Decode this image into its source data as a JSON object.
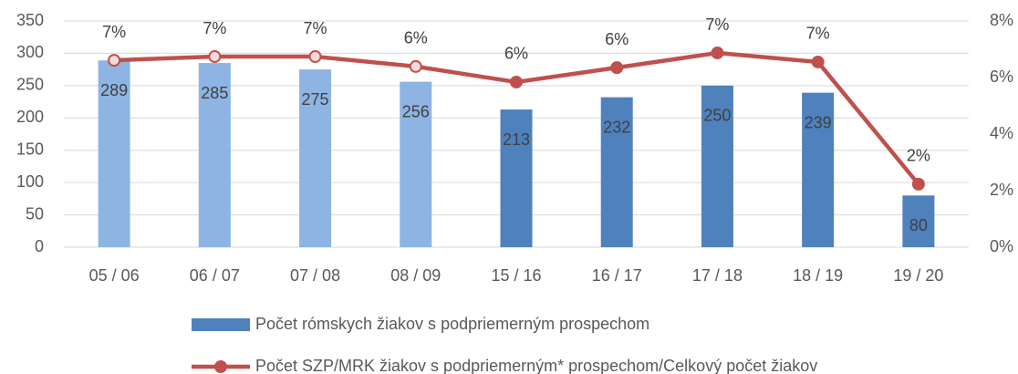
{
  "chart_data": {
    "type": "combo",
    "categories": [
      "05 / 06",
      "06 / 07",
      "07 / 08",
      "08 / 09",
      "15 / 16",
      "16 / 17",
      "17 / 18",
      "18 / 19",
      "19 / 20"
    ],
    "series": [
      {
        "name": "Počet rómskych žiakov s podpriemerným prospechom",
        "type": "bar",
        "color": "#4f81bd",
        "colors": [
          "#8eb4e3",
          "#8eb4e3",
          "#8eb4e3",
          "#8eb4e3",
          "#4f81bd",
          "#4f81bd",
          "#4f81bd",
          "#4f81bd",
          "#4f81bd"
        ],
        "values": [
          289,
          285,
          275,
          256,
          213,
          232,
          250,
          239,
          80
        ]
      },
      {
        "name": "Počet SZP/MRK žiakov s podpriemerným* prospechom/Celkový počet žiakov",
        "type": "line",
        "axis": "y2",
        "color": "#c0504d",
        "marker_colors": [
          "#f2dcdb",
          "#f2dcdb",
          "#f2dcdb",
          "#f2dcdb",
          "#c0504d",
          "#c0504d",
          "#c0504d",
          "#c0504d",
          "#c0504d"
        ],
        "values": [
          6.61,
          6.74,
          6.74,
          6.39,
          5.84,
          6.35,
          6.87,
          6.55,
          2.23
        ],
        "value_labels": [
          "7%",
          "7%",
          "7%",
          "6%",
          "6%",
          "6%",
          "7%",
          "7%",
          "2%"
        ]
      }
    ],
    "ylim": [
      0,
      350
    ],
    "yticks": [
      0,
      50,
      100,
      150,
      200,
      250,
      300,
      350
    ],
    "y2lim": [
      0,
      8
    ],
    "y2ticks": [
      {
        "value": 0,
        "label": "0%"
      },
      {
        "value": 2,
        "label": "2%"
      },
      {
        "value": 4,
        "label": "4%"
      },
      {
        "value": 6,
        "label": "6%"
      },
      {
        "value": 8,
        "label": "8%"
      }
    ],
    "grid": true,
    "legend": "bottom"
  }
}
